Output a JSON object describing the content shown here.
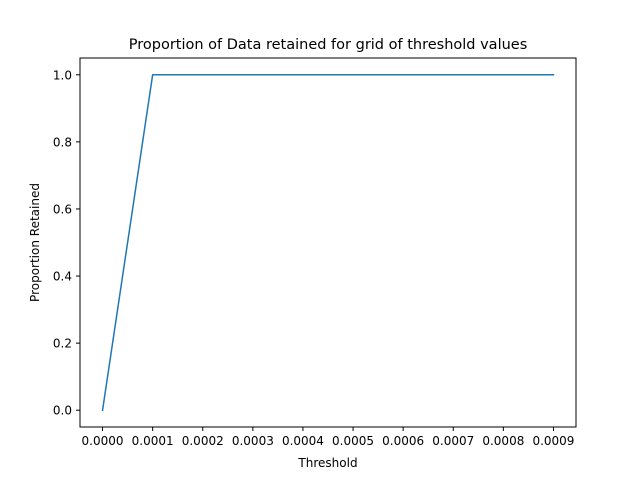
{
  "chart_data": {
    "type": "line",
    "title": "Proportion of Data retained for grid of threshold values",
    "xlabel": "Threshold",
    "ylabel": "Proportion Retained",
    "xlim": [
      -4.5e-05,
      0.000945
    ],
    "ylim": [
      -0.05,
      1.05
    ],
    "xticks": [
      0.0,
      0.0001,
      0.0002,
      0.0003,
      0.0004,
      0.0005,
      0.0006,
      0.0007,
      0.0008,
      0.0009
    ],
    "xtick_labels": [
      "0.0000",
      "0.0001",
      "0.0002",
      "0.0003",
      "0.0004",
      "0.0005",
      "0.0006",
      "0.0007",
      "0.0008",
      "0.0009"
    ],
    "yticks": [
      0.0,
      0.2,
      0.4,
      0.6,
      0.8,
      1.0
    ],
    "ytick_labels": [
      "0.0",
      "0.2",
      "0.4",
      "0.6",
      "0.8",
      "1.0"
    ],
    "grid": false,
    "series": [
      {
        "color": "#1f77b4",
        "x": [
          0.0,
          0.0001,
          0.0002,
          0.0003,
          0.0004,
          0.0005,
          0.0006,
          0.0007,
          0.0008,
          0.0009
        ],
        "y": [
          0.0,
          1.0,
          1.0,
          1.0,
          1.0,
          1.0,
          1.0,
          1.0,
          1.0,
          1.0
        ]
      }
    ]
  }
}
